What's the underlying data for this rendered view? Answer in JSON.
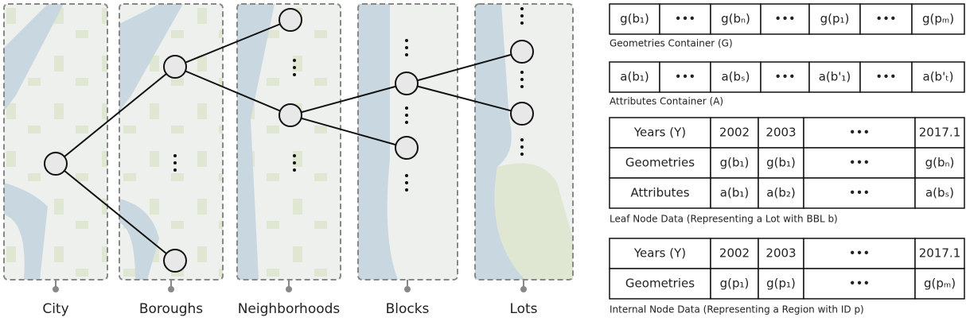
{
  "levels": [
    "City",
    "Boroughs",
    "Neighborhoods",
    "Blocks",
    "Lots"
  ],
  "geometries_container": {
    "cells": [
      "g(b₁)",
      "•••",
      "g(bₙ)",
      "•••",
      "g(p₁)",
      "•••",
      "g(pₘ)"
    ],
    "caption": "Geometries Container (G)"
  },
  "attributes_container": {
    "cells": [
      "a(b₁)",
      "•••",
      "a(bₛ)",
      "•••",
      "a(b'₁)",
      "•••",
      "a(b'ₜ)"
    ],
    "caption": "Attributes Container (A)"
  },
  "leaf_node": {
    "rows": [
      [
        "Years (Y)",
        "2002",
        "2003",
        "•••",
        "2017.1"
      ],
      [
        "Geometries",
        "g(b₁)",
        "g(b₁)",
        "•••",
        "g(bₙ)"
      ],
      [
        "Attributes",
        "a(b₁)",
        "a(b₂)",
        "•••",
        "a(bₛ)"
      ]
    ],
    "caption": "Leaf Node Data (Representing a Lot with BBL b)"
  },
  "internal_node": {
    "rows": [
      [
        "Years (Y)",
        "2002",
        "2003",
        "•••",
        "2017.1"
      ],
      [
        "Geometries",
        "g(p₁)",
        "g(p₁)",
        "•••",
        "g(pₘ)"
      ]
    ],
    "caption": "Internal Node Data (Representing a Region with ID p)"
  }
}
